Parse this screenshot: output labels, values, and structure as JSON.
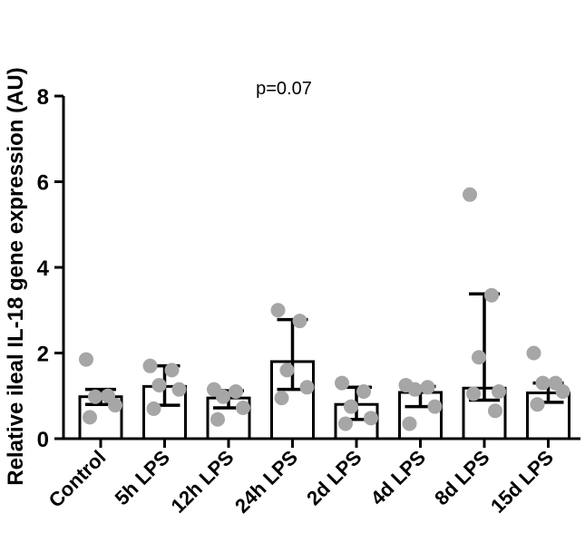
{
  "chart_data": {
    "type": "bar",
    "title": "",
    "xlabel": "",
    "ylabel": "Relative ileal IL-18 gene expression (AU)",
    "ylim": [
      0,
      8
    ],
    "yticks": [
      "0",
      "2",
      "4",
      "6",
      "8"
    ],
    "grid": false,
    "annotation": "p=0.07",
    "categories": [
      "Control",
      "5h LPS",
      "12h LPS",
      "24h LPS",
      "2d LPS",
      "4d LPS",
      "8d LPS",
      "15d LPS"
    ],
    "values": [
      0.98,
      1.22,
      0.95,
      1.8,
      0.8,
      1.08,
      1.18,
      1.07
    ],
    "error_low": [
      0.8,
      0.78,
      0.72,
      1.15,
      0.45,
      0.75,
      0.9,
      0.85
    ],
    "error_high": [
      1.15,
      1.7,
      1.12,
      2.78,
      1.2,
      1.22,
      3.38,
      1.3
    ],
    "points": [
      [
        1.85,
        1.0,
        0.98,
        0.78,
        0.5
      ],
      [
        1.7,
        1.6,
        1.25,
        1.15,
        0.7
      ],
      [
        1.15,
        1.1,
        0.98,
        0.72,
        0.45
      ],
      [
        3.0,
        2.75,
        1.6,
        1.2,
        0.95
      ],
      [
        1.3,
        1.1,
        0.75,
        0.48,
        0.35
      ],
      [
        1.25,
        1.2,
        1.15,
        0.75,
        0.35
      ],
      [
        5.7,
        3.35,
        1.9,
        1.1,
        1.05,
        0.65
      ],
      [
        2.0,
        1.3,
        1.3,
        1.1,
        0.8
      ]
    ],
    "colors": {
      "bar_fill": "#ffffff",
      "bar_stroke": "#000000",
      "point": "#a6a6a6",
      "errorbar": "#000000"
    }
  }
}
